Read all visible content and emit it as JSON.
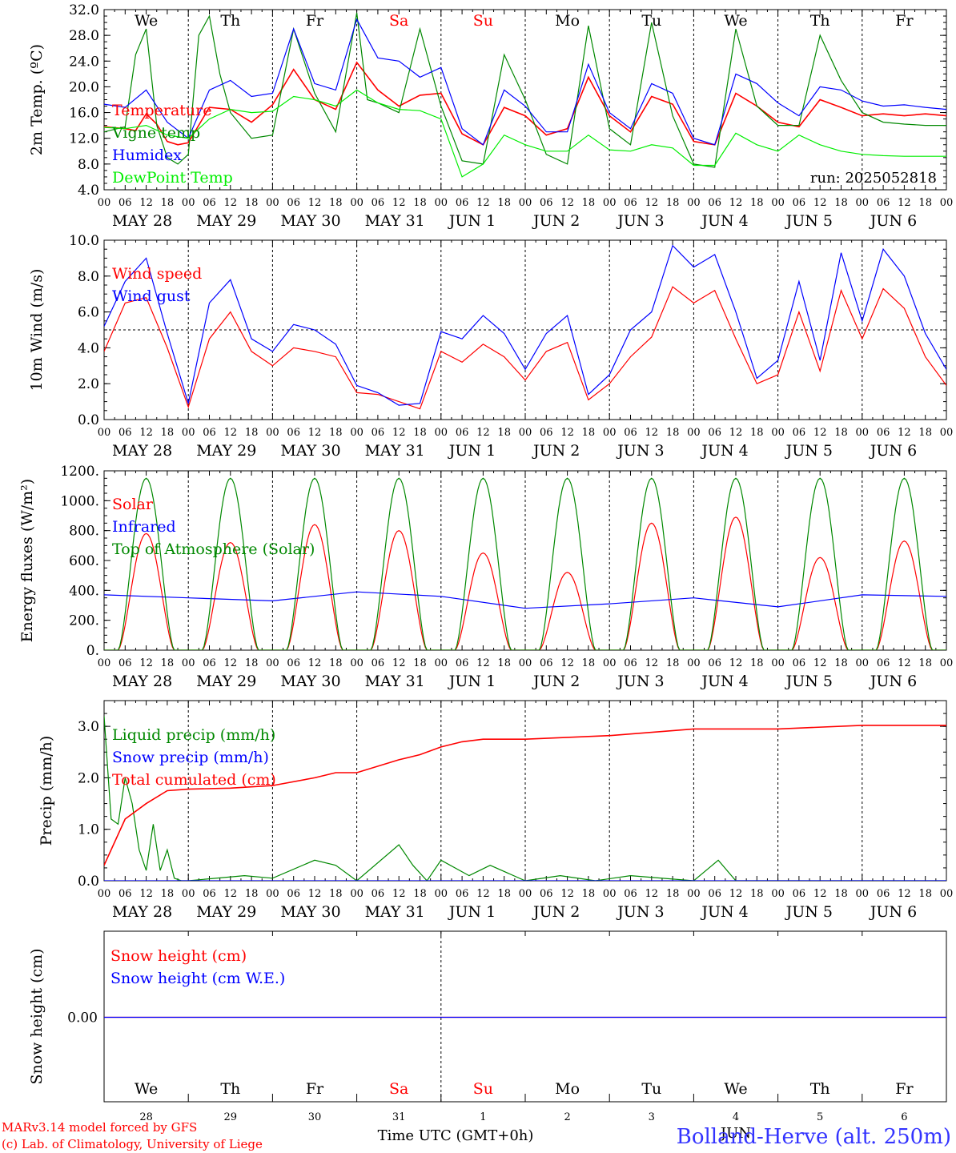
{
  "panels": {
    "temp": {
      "ylabel": "2m Temp. (ºC)",
      "yticks": [
        "4.0",
        "8.0",
        "12.0",
        "16.0",
        "20.0",
        "24.0",
        "28.0",
        "32.0"
      ],
      "ylim": [
        4,
        32
      ],
      "legend": [
        {
          "label": "Temperature",
          "color": "#ff0000"
        },
        {
          "label": "Vigne temp",
          "color": "#008800"
        },
        {
          "label": "Humidex",
          "color": "#0000ff"
        },
        {
          "label": "DewPoint Temp",
          "color": "#00ee00"
        }
      ],
      "run_label": "run: 2025052818",
      "weekdays": [
        {
          "label": "We",
          "color": "#000000"
        },
        {
          "label": "Th",
          "color": "#000000"
        },
        {
          "label": "Fr",
          "color": "#000000"
        },
        {
          "label": "Sa",
          "color": "#ff0000"
        },
        {
          "label": "Su",
          "color": "#ff0000"
        },
        {
          "label": "Mo",
          "color": "#000000"
        },
        {
          "label": "Tu",
          "color": "#000000"
        },
        {
          "label": "We",
          "color": "#000000"
        },
        {
          "label": "Th",
          "color": "#000000"
        },
        {
          "label": "Fr",
          "color": "#000000"
        }
      ]
    },
    "wind": {
      "ylabel": "10m Wind (m/s)",
      "yticks": [
        "0.0",
        "2.0",
        "4.0",
        "6.0",
        "8.0",
        "10.0"
      ],
      "ylim": [
        0,
        10
      ],
      "legend": [
        {
          "label": "Wind speed",
          "color": "#ff0000"
        },
        {
          "label": "Wind gust",
          "color": "#0000ff"
        }
      ]
    },
    "energy": {
      "ylabel": "Energy fluxes (W/m²)",
      "yticks": [
        "0.",
        "200.",
        "400.",
        "600.",
        "800.",
        "1000.",
        "1200."
      ],
      "ylim": [
        0,
        1200
      ],
      "legend": [
        {
          "label": "Solar",
          "color": "#ff0000"
        },
        {
          "label": "Infrared",
          "color": "#0000ff"
        },
        {
          "label": "Top of Atmosphere (Solar)",
          "color": "#008800"
        }
      ]
    },
    "precip": {
      "ylabel": "Precip (mm/h)",
      "yticks": [
        "0.0",
        "1.0",
        "2.0",
        "3.0"
      ],
      "ylim": [
        0,
        3.5
      ],
      "legend": [
        {
          "label": "Liquid precip (mm/h)",
          "color": "#008800"
        },
        {
          "label": "Snow precip (mm/h)",
          "color": "#0000ff"
        },
        {
          "label": "Total cumulated (cm)",
          "color": "#ff0000"
        }
      ]
    },
    "snow": {
      "ylabel": "Snow height (cm)",
      "yticks": [
        "0.00"
      ],
      "legend": [
        {
          "label": "Snow height (cm)",
          "color": "#ff0000"
        },
        {
          "label": "Snow height (cm W.E.)",
          "color": "#0000ff"
        }
      ],
      "day_numbers": [
        "28",
        "29",
        "30",
        "31",
        "1",
        "2",
        "3",
        "4",
        "5",
        "6"
      ],
      "month_label": "JUN",
      "xlabel": "Time UTC (GMT+0h)"
    }
  },
  "hour_ticks": [
    "00",
    "06",
    "12",
    "18"
  ],
  "end_hour": "00",
  "date_labels": [
    "MAY 28",
    "MAY 29",
    "MAY 30",
    "MAY 31",
    "JUN  1",
    "JUN  2",
    "JUN  3",
    "JUN  4",
    "JUN  5",
    "JUN  6"
  ],
  "footer": {
    "model": "MARv3.14 model forced by GFS",
    "lab": "(c) Lab. of Climatology, University of Liege",
    "station": "Bolland-Herve (alt. 250m)"
  },
  "chart_data": [
    {
      "type": "line",
      "title": "2m Temp.",
      "ylabel": "2m Temp. (ºC)",
      "ylim": [
        4,
        32
      ],
      "x_unit": "hours since 2025-05-28 00 UTC",
      "series": [
        {
          "name": "Temperature",
          "color": "#ff0000",
          "x": [
            0,
            6,
            9,
            12,
            15,
            18,
            21,
            24,
            30,
            36,
            42,
            48,
            54,
            60,
            66,
            72,
            78,
            84,
            90,
            96,
            102,
            108,
            114,
            120,
            126,
            132,
            138,
            144,
            150,
            156,
            162,
            168,
            174,
            180,
            186,
            192,
            198,
            204,
            210,
            216,
            222,
            228,
            234,
            240
          ],
          "y": [
            13.8,
            13.5,
            13.2,
            15.8,
            14.2,
            11.5,
            11.0,
            11.3,
            16.8,
            16.5,
            14.5,
            17.2,
            22.7,
            18.0,
            16.5,
            23.8,
            19.5,
            17.0,
            18.7,
            19.0,
            12.7,
            11.0,
            16.8,
            15.5,
            12.5,
            13.5,
            21.5,
            15.5,
            13.0,
            18.5,
            17.3,
            11.5,
            11.0,
            19.0,
            17.0,
            14.5,
            13.8,
            18.0,
            16.8,
            15.5,
            15.8,
            15.5,
            15.8,
            15.5
          ]
        },
        {
          "name": "Vigne temp",
          "color": "#008800",
          "x": [
            0,
            6,
            9,
            12,
            15,
            18,
            21,
            24,
            27,
            30,
            33,
            36,
            42,
            48,
            54,
            60,
            66,
            72,
            75,
            78,
            84,
            90,
            96,
            102,
            108,
            114,
            120,
            126,
            132,
            138,
            144,
            150,
            156,
            162,
            168,
            174,
            180,
            186,
            192,
            198,
            204,
            210,
            216,
            222,
            228,
            234,
            240
          ],
          "y": [
            13.0,
            13.8,
            25.0,
            29.0,
            14.0,
            9.0,
            8.0,
            9.5,
            28.0,
            31.0,
            22.0,
            16.0,
            12.0,
            12.5,
            29.0,
            19.0,
            13.0,
            31.5,
            18.0,
            17.5,
            16.0,
            29.0,
            17.0,
            8.5,
            8.0,
            25.0,
            18.0,
            9.5,
            8.0,
            29.5,
            13.5,
            11.0,
            30.0,
            15.5,
            8.0,
            7.5,
            29.0,
            17.0,
            14.0,
            14.0,
            28.0,
            21.0,
            16.0,
            14.5,
            14.2,
            14.0,
            14.0
          ]
        },
        {
          "name": "Humidex",
          "color": "#0000ff",
          "x": [
            0,
            6,
            12,
            18,
            24,
            30,
            36,
            42,
            48,
            54,
            60,
            66,
            72,
            78,
            84,
            90,
            96,
            102,
            108,
            114,
            120,
            126,
            132,
            138,
            144,
            150,
            156,
            162,
            168,
            174,
            180,
            186,
            192,
            198,
            204,
            210,
            216,
            222,
            228,
            234,
            240
          ],
          "y": [
            17.3,
            16.8,
            19.5,
            14.5,
            12.0,
            19.5,
            21.0,
            18.5,
            19.0,
            29.0,
            20.5,
            19.5,
            30.5,
            24.5,
            24.0,
            21.5,
            23.0,
            13.5,
            11.0,
            19.5,
            17.0,
            13.0,
            13.0,
            23.5,
            16.0,
            13.5,
            20.5,
            19.0,
            12.0,
            11.0,
            22.0,
            20.5,
            17.5,
            15.5,
            20.0,
            19.5,
            17.8,
            17.0,
            17.2,
            16.8,
            16.5
          ]
        },
        {
          "name": "DewPoint Temp",
          "color": "#00ee00",
          "x": [
            0,
            6,
            12,
            18,
            24,
            30,
            36,
            42,
            48,
            54,
            60,
            66,
            72,
            78,
            84,
            90,
            96,
            102,
            108,
            114,
            120,
            126,
            132,
            138,
            144,
            150,
            156,
            162,
            168,
            174,
            180,
            186,
            192,
            198,
            204,
            210,
            216,
            222,
            228,
            234,
            240
          ],
          "y": [
            13.7,
            13.5,
            14.0,
            12.5,
            12.0,
            15.0,
            16.5,
            16.0,
            16.2,
            18.5,
            18.0,
            17.0,
            19.5,
            17.5,
            16.5,
            16.3,
            15.0,
            6.0,
            8.0,
            12.5,
            11.0,
            10.0,
            10.0,
            12.5,
            10.2,
            10.0,
            11.0,
            10.5,
            7.8,
            7.8,
            12.8,
            11.0,
            10.0,
            12.5,
            11.0,
            10.0,
            9.5,
            9.3,
            9.2,
            9.2,
            9.2
          ]
        }
      ]
    },
    {
      "type": "line",
      "title": "10m Wind",
      "ylabel": "10m Wind (m/s)",
      "ylim": [
        0,
        10
      ],
      "x_unit": "hours since 2025-05-28 00 UTC",
      "series": [
        {
          "name": "Wind speed",
          "color": "#ff0000",
          "x": [
            0,
            6,
            12,
            18,
            24,
            30,
            36,
            42,
            48,
            54,
            60,
            66,
            72,
            78,
            84,
            90,
            96,
            102,
            108,
            114,
            120,
            126,
            132,
            138,
            144,
            150,
            156,
            162,
            168,
            174,
            180,
            186,
            192,
            198,
            204,
            210,
            216,
            222,
            228,
            234,
            240
          ],
          "y": [
            3.8,
            6.5,
            6.8,
            4.0,
            0.7,
            4.5,
            6.0,
            3.8,
            3.0,
            4.0,
            3.8,
            3.5,
            1.5,
            1.4,
            1.0,
            0.6,
            3.8,
            3.2,
            4.2,
            3.5,
            2.2,
            3.8,
            4.3,
            1.1,
            2.0,
            3.5,
            4.6,
            7.4,
            6.5,
            7.2,
            4.5,
            2.0,
            2.5,
            6.0,
            2.7,
            7.2,
            4.5,
            7.3,
            6.2,
            3.5,
            1.9
          ]
        },
        {
          "name": "Wind gust",
          "color": "#0000ff",
          "x": [
            0,
            6,
            12,
            18,
            24,
            30,
            36,
            42,
            48,
            54,
            60,
            66,
            72,
            78,
            84,
            90,
            96,
            102,
            108,
            114,
            120,
            126,
            132,
            138,
            144,
            150,
            156,
            162,
            168,
            174,
            180,
            186,
            192,
            198,
            204,
            210,
            216,
            222,
            228,
            234,
            240
          ],
          "y": [
            5.2,
            7.7,
            9.0,
            4.8,
            0.9,
            6.5,
            7.8,
            4.5,
            3.8,
            5.3,
            5.0,
            4.2,
            1.9,
            1.5,
            0.8,
            0.9,
            4.9,
            4.5,
            5.8,
            4.8,
            2.8,
            4.8,
            5.8,
            1.4,
            2.5,
            5.0,
            6.0,
            9.7,
            8.5,
            9.2,
            6.0,
            2.3,
            3.3,
            7.7,
            3.3,
            9.3,
            5.5,
            9.5,
            8.0,
            4.8,
            2.8
          ]
        }
      ]
    },
    {
      "type": "line",
      "title": "Energy fluxes",
      "ylabel": "Energy fluxes (W/m²)",
      "ylim": [
        0,
        1200
      ],
      "x_unit": "hours since 2025-05-28 00 UTC",
      "series": [
        {
          "name": "Solar",
          "color": "#ff0000",
          "daily_peak": [
            780,
            720,
            840,
            800,
            650,
            520,
            850,
            890,
            620,
            730
          ],
          "noon_hour": 12
        },
        {
          "name": "Infrared",
          "color": "#0000ff",
          "x": [
            0,
            24,
            48,
            72,
            96,
            120,
            144,
            168,
            192,
            216,
            240
          ],
          "y": [
            370,
            350,
            330,
            390,
            360,
            280,
            310,
            350,
            290,
            370,
            360
          ]
        },
        {
          "name": "Top of Atmosphere (Solar)",
          "color": "#008800",
          "daily_peak": [
            1150,
            1150,
            1150,
            1150,
            1150,
            1150,
            1150,
            1150,
            1150,
            1150
          ],
          "noon_hour": 12
        }
      ]
    },
    {
      "type": "line",
      "title": "Precip",
      "ylabel": "Precip (mm/h)",
      "ylim": [
        0,
        3.5
      ],
      "x_unit": "hours since 2025-05-28 00 UTC",
      "series": [
        {
          "name": "Liquid precip (mm/h)",
          "color": "#008800",
          "x": [
            0,
            2,
            4,
            6,
            8,
            10,
            12,
            14,
            16,
            18,
            20,
            22,
            24,
            40,
            48,
            60,
            66,
            72,
            84,
            88,
            92,
            96,
            104,
            110,
            120,
            130,
            140,
            150,
            168,
            175,
            180,
            192,
            210,
            216,
            240
          ],
          "y": [
            3.2,
            1.2,
            1.1,
            2.0,
            1.5,
            0.6,
            0.2,
            1.1,
            0.2,
            0.6,
            0.05,
            0.0,
            0.0,
            0.1,
            0.05,
            0.4,
            0.3,
            0.0,
            0.7,
            0.3,
            0.0,
            0.4,
            0.1,
            0.3,
            0.0,
            0.1,
            0.0,
            0.1,
            0.0,
            0.4,
            0.0,
            0.0,
            0.0,
            0.0,
            0.0
          ]
        },
        {
          "name": "Snow precip (mm/h)",
          "color": "#0000ff",
          "x": [
            0,
            240
          ],
          "y": [
            0,
            0
          ]
        },
        {
          "name": "Total cumulated (cm)",
          "color": "#ff0000",
          "x": [
            0,
            6,
            12,
            18,
            24,
            36,
            48,
            60,
            66,
            72,
            84,
            90,
            96,
            102,
            108,
            120,
            144,
            168,
            192,
            216,
            240
          ],
          "y": [
            0.3,
            1.2,
            1.5,
            1.75,
            1.78,
            1.8,
            1.85,
            2.0,
            2.1,
            2.1,
            2.35,
            2.45,
            2.6,
            2.7,
            2.75,
            2.75,
            2.82,
            2.95,
            2.95,
            3.02,
            3.02
          ]
        }
      ]
    },
    {
      "type": "line",
      "title": "Snow height",
      "ylabel": "Snow height (cm)",
      "x_unit": "hours since 2025-05-28 00 UTC",
      "series": [
        {
          "name": "Snow height (cm)",
          "color": "#ff0000",
          "x": [
            0,
            240
          ],
          "y": [
            0,
            0
          ]
        },
        {
          "name": "Snow height (cm W.E.)",
          "color": "#0000ff",
          "x": [
            0,
            240
          ],
          "y": [
            0,
            0
          ]
        }
      ]
    }
  ]
}
